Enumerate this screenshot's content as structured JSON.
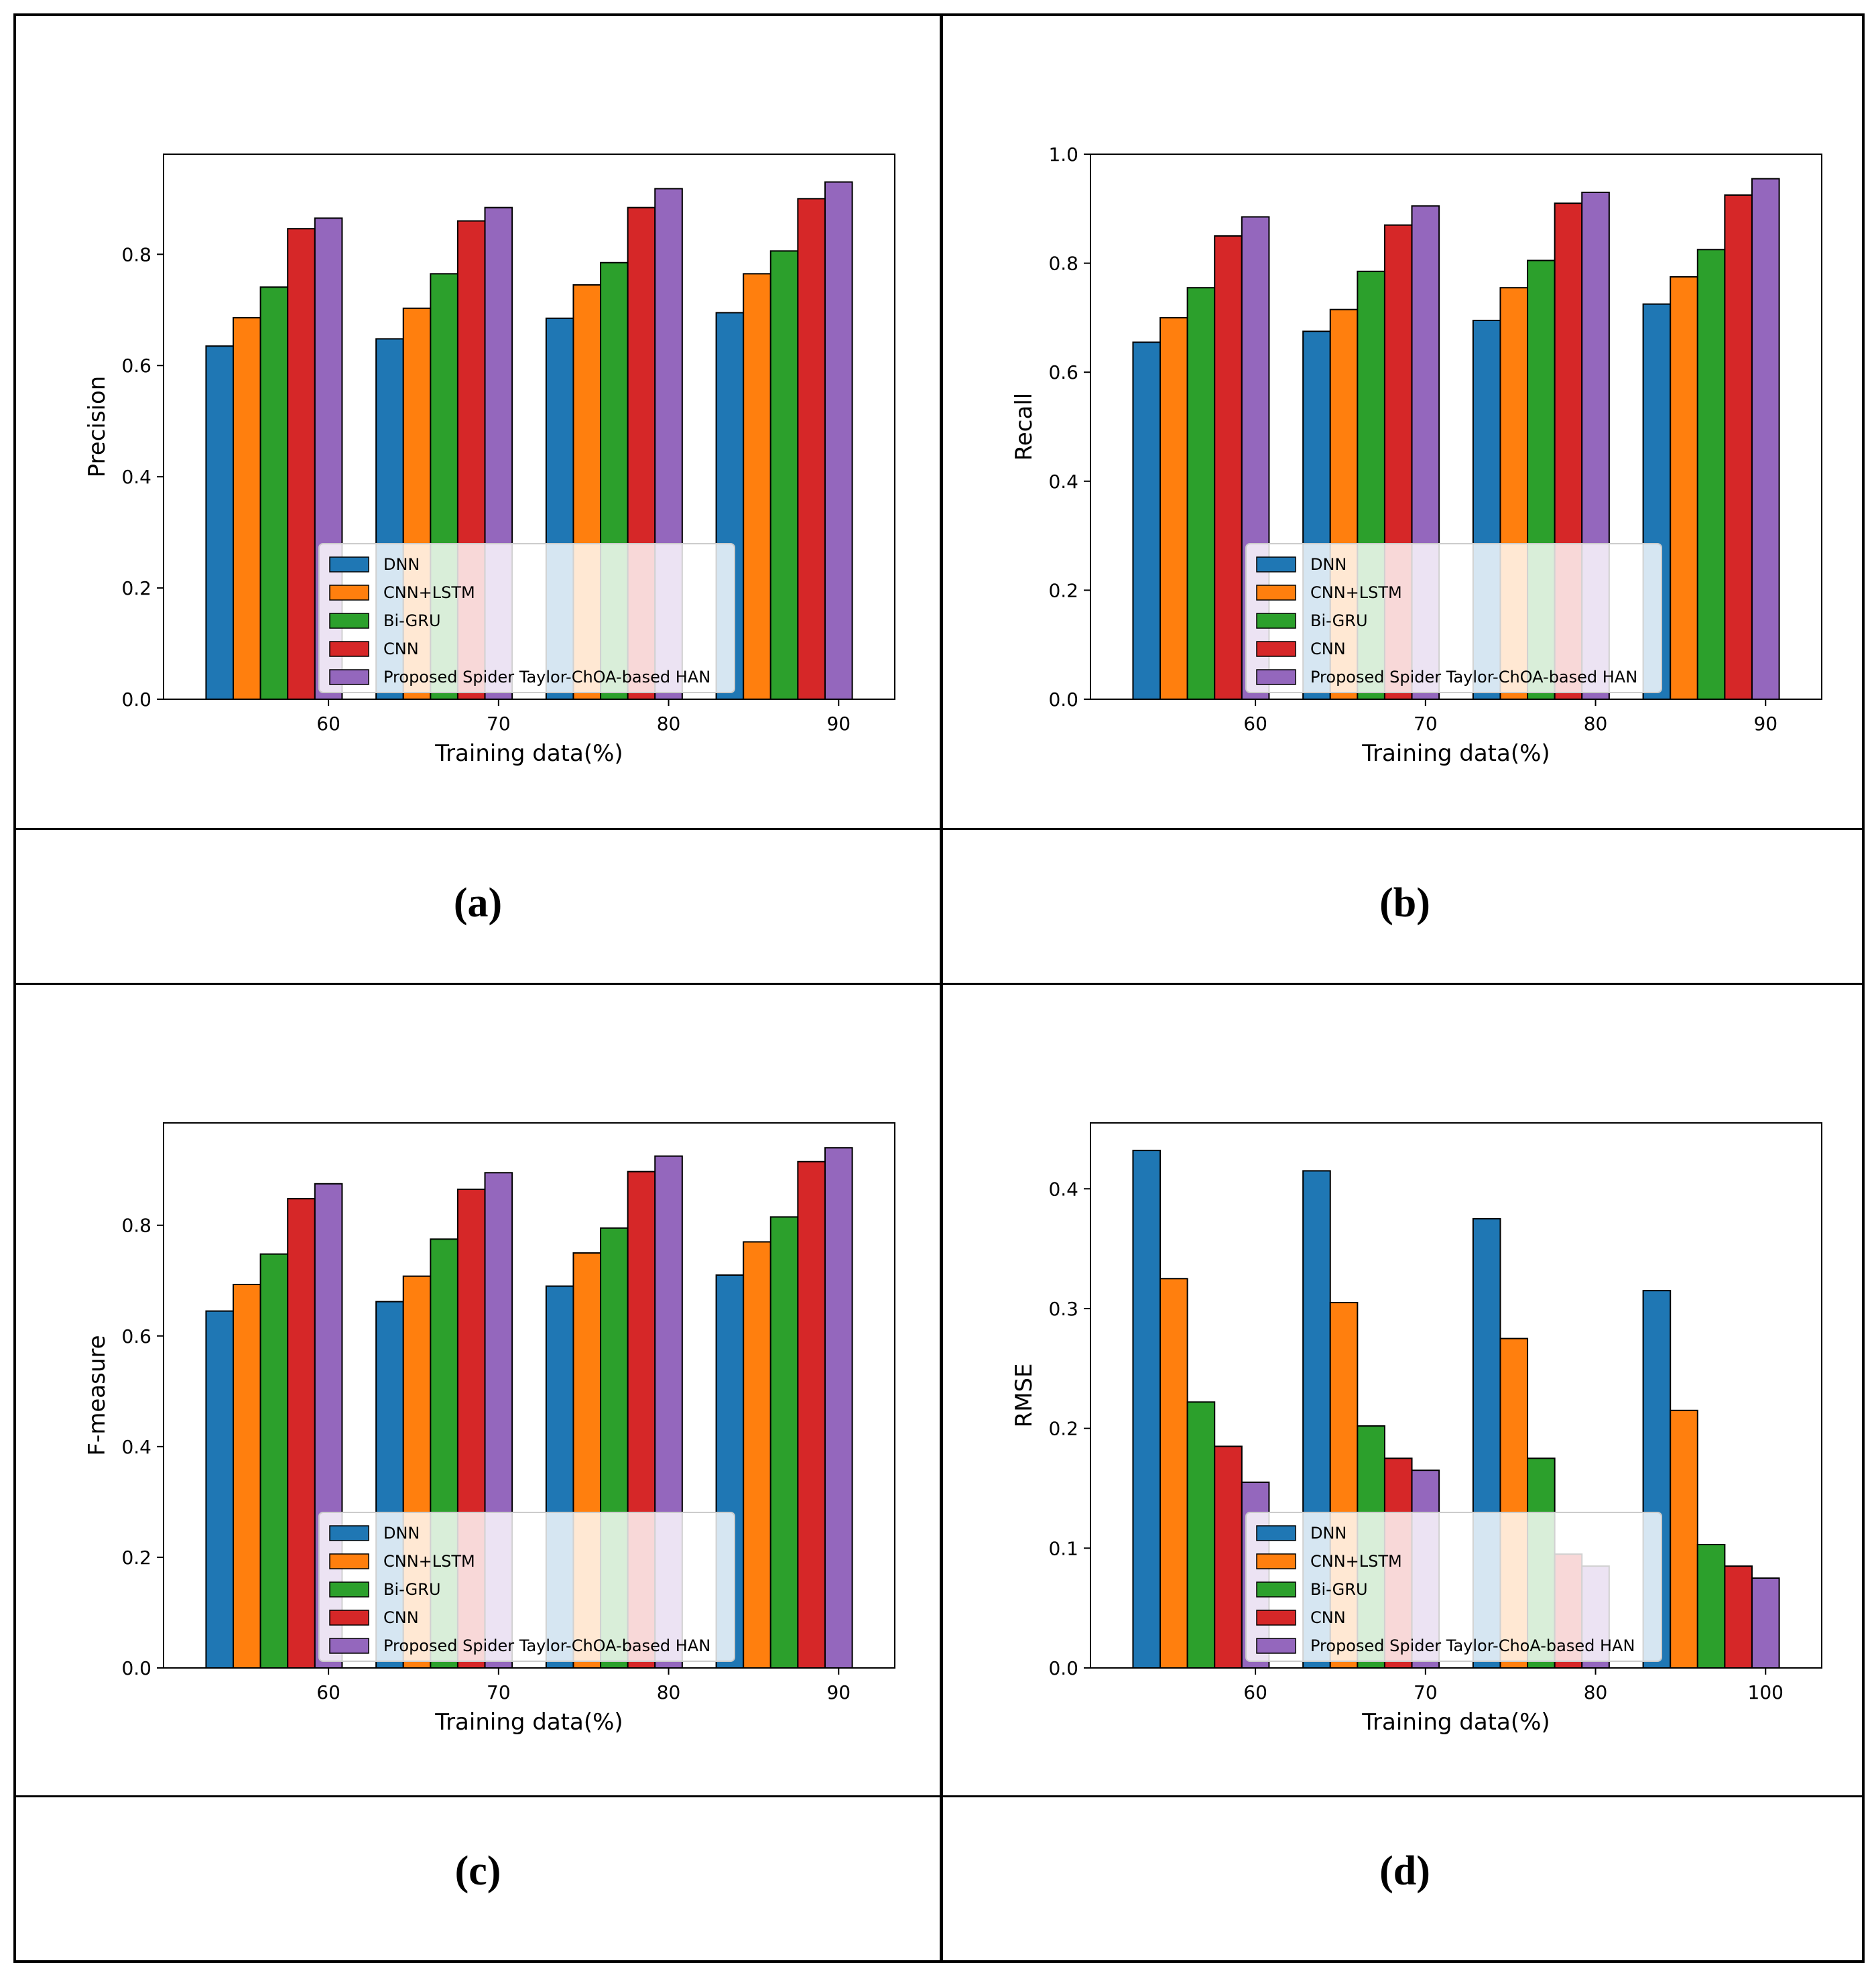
{
  "figure": {
    "captions": [
      "(a)",
      "(b)",
      "(c)",
      "(d)"
    ]
  },
  "colors": {
    "DNN": "#1f77b4",
    "CNN+LSTM": "#ff7f0e",
    "Bi-GRU": "#2ca02c",
    "CNN": "#d62728",
    "HAN": "#9467bd"
  },
  "chart_data": [
    {
      "type": "bar",
      "id": "a",
      "xlabel": "Training data(%)",
      "ylabel": "Precision",
      "categories": [
        "60",
        "70",
        "80",
        "90"
      ],
      "ylim": [
        0,
        0.98
      ],
      "yticks": [
        "0.0",
        "0.2",
        "0.4",
        "0.6",
        "0.8"
      ],
      "legend_loc": "lower-center",
      "series": [
        {
          "name": "DNN",
          "values": [
            0.635,
            0.648,
            0.685,
            0.695
          ]
        },
        {
          "name": "CNN+LSTM",
          "values": [
            0.686,
            0.703,
            0.745,
            0.765
          ]
        },
        {
          "name": "Bi-GRU",
          "values": [
            0.741,
            0.765,
            0.785,
            0.806
          ]
        },
        {
          "name": "CNN",
          "values": [
            0.846,
            0.86,
            0.884,
            0.9
          ]
        },
        {
          "name": "Proposed Spider Taylor-ChOA-based HAN",
          "values": [
            0.865,
            0.884,
            0.918,
            0.93
          ]
        }
      ]
    },
    {
      "type": "bar",
      "id": "b",
      "xlabel": "Training data(%)",
      "ylabel": "Recall",
      "categories": [
        "60",
        "70",
        "80",
        "90"
      ],
      "ylim": [
        0,
        1.0
      ],
      "yticks": [
        "0.0",
        "0.2",
        "0.4",
        "0.6",
        "0.8",
        "1.0"
      ],
      "legend_loc": "lower-center",
      "series": [
        {
          "name": "DNN",
          "values": [
            0.655,
            0.675,
            0.695,
            0.725
          ]
        },
        {
          "name": "CNN+LSTM",
          "values": [
            0.7,
            0.715,
            0.755,
            0.775
          ]
        },
        {
          "name": "Bi-GRU",
          "values": [
            0.755,
            0.785,
            0.805,
            0.825
          ]
        },
        {
          "name": "CNN",
          "values": [
            0.85,
            0.87,
            0.91,
            0.925
          ]
        },
        {
          "name": "Proposed Spider Taylor-ChOA-based HAN",
          "values": [
            0.885,
            0.905,
            0.93,
            0.955
          ]
        }
      ]
    },
    {
      "type": "bar",
      "id": "c",
      "xlabel": "Training data(%)",
      "ylabel": "F-measure",
      "categories": [
        "60",
        "70",
        "80",
        "90"
      ],
      "ylim": [
        0,
        0.985
      ],
      "yticks": [
        "0.0",
        "0.2",
        "0.4",
        "0.6",
        "0.8"
      ],
      "legend_loc": "lower-center",
      "series": [
        {
          "name": "DNN",
          "values": [
            0.645,
            0.662,
            0.69,
            0.71
          ]
        },
        {
          "name": "CNN+LSTM",
          "values": [
            0.693,
            0.708,
            0.75,
            0.77
          ]
        },
        {
          "name": "Bi-GRU",
          "values": [
            0.748,
            0.775,
            0.795,
            0.815
          ]
        },
        {
          "name": "CNN",
          "values": [
            0.848,
            0.865,
            0.897,
            0.915
          ]
        },
        {
          "name": "Proposed Spider Taylor-ChOA-based HAN",
          "values": [
            0.875,
            0.895,
            0.925,
            0.94
          ]
        }
      ]
    },
    {
      "type": "bar",
      "id": "d",
      "xlabel": "Training data(%)",
      "ylabel": "RMSE",
      "categories": [
        "60",
        "70",
        "80",
        "100"
      ],
      "ylim": [
        0,
        0.455
      ],
      "yticks": [
        "0.0",
        "0.1",
        "0.2",
        "0.3",
        "0.4"
      ],
      "legend_loc": "lower-center",
      "series": [
        {
          "name": "DNN",
          "values": [
            0.432,
            0.415,
            0.375,
            0.315
          ]
        },
        {
          "name": "CNN+LSTM",
          "values": [
            0.325,
            0.305,
            0.275,
            0.215
          ]
        },
        {
          "name": "Bi-GRU",
          "values": [
            0.222,
            0.202,
            0.175,
            0.103
          ]
        },
        {
          "name": "CNN",
          "values": [
            0.185,
            0.175,
            0.095,
            0.085
          ]
        },
        {
          "name": "Proposed Spider Taylor-ChoA-based HAN",
          "values": [
            0.155,
            0.165,
            0.085,
            0.075
          ]
        }
      ]
    }
  ]
}
